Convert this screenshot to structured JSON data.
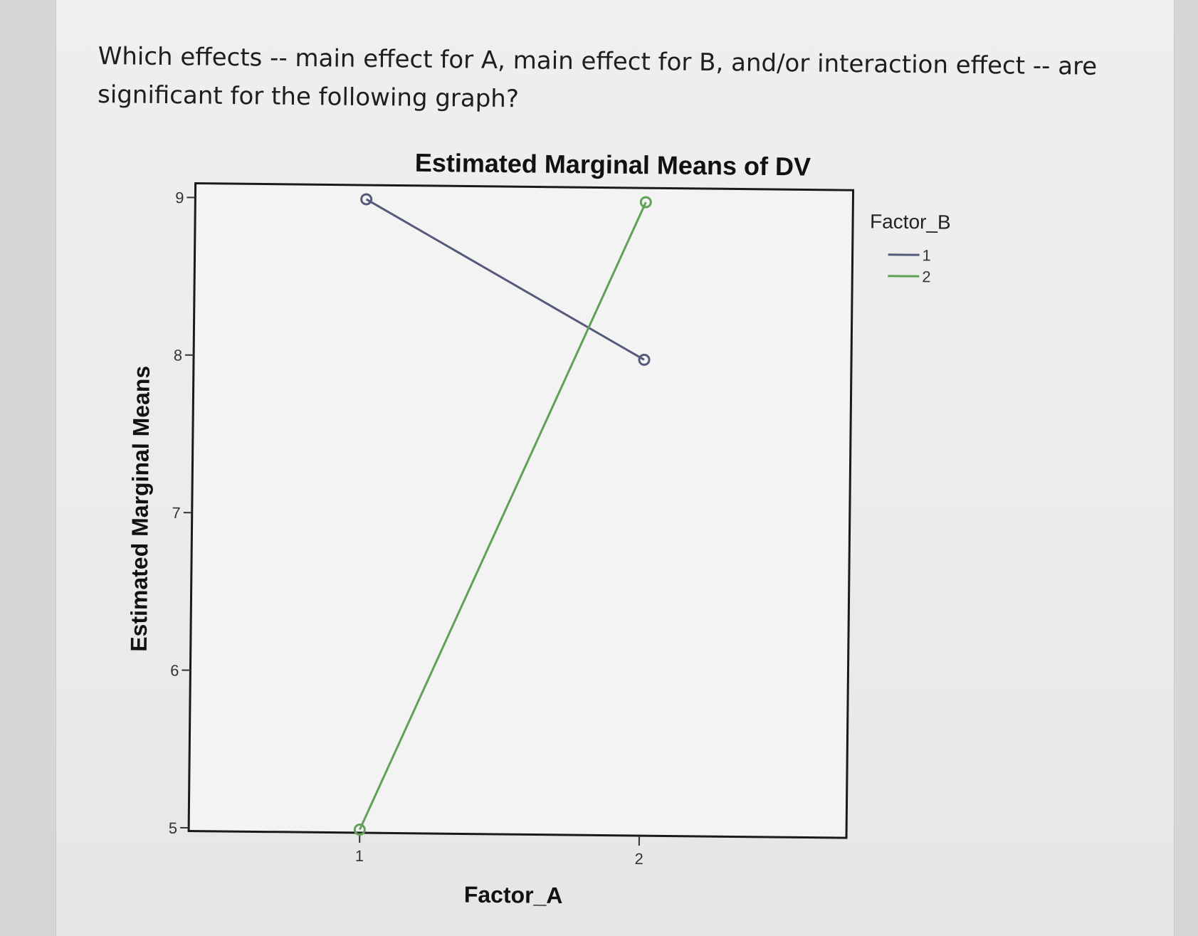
{
  "question": {
    "text": "Which effects -- main effect for A, main effect for B, and/or interaction effect -- are significant for the following graph?"
  },
  "chart_data": {
    "type": "line",
    "title": "Estimated Marginal Means of DV",
    "xlabel": "Factor_A",
    "ylabel": "Estimated Marginal Means",
    "categories": [
      "1",
      "2"
    ],
    "y_ticks": [
      5,
      6,
      7,
      8,
      9
    ],
    "ylim": [
      4.98,
      9.09
    ],
    "legend": {
      "title": "Factor_B",
      "placement": "right"
    },
    "grid": false,
    "series": [
      {
        "name": "1",
        "values": [
          9.0,
          8.0
        ],
        "color": "#55597a"
      },
      {
        "name": "2",
        "values": [
          5.0,
          9.0
        ],
        "color": "#5fa255"
      }
    ]
  }
}
